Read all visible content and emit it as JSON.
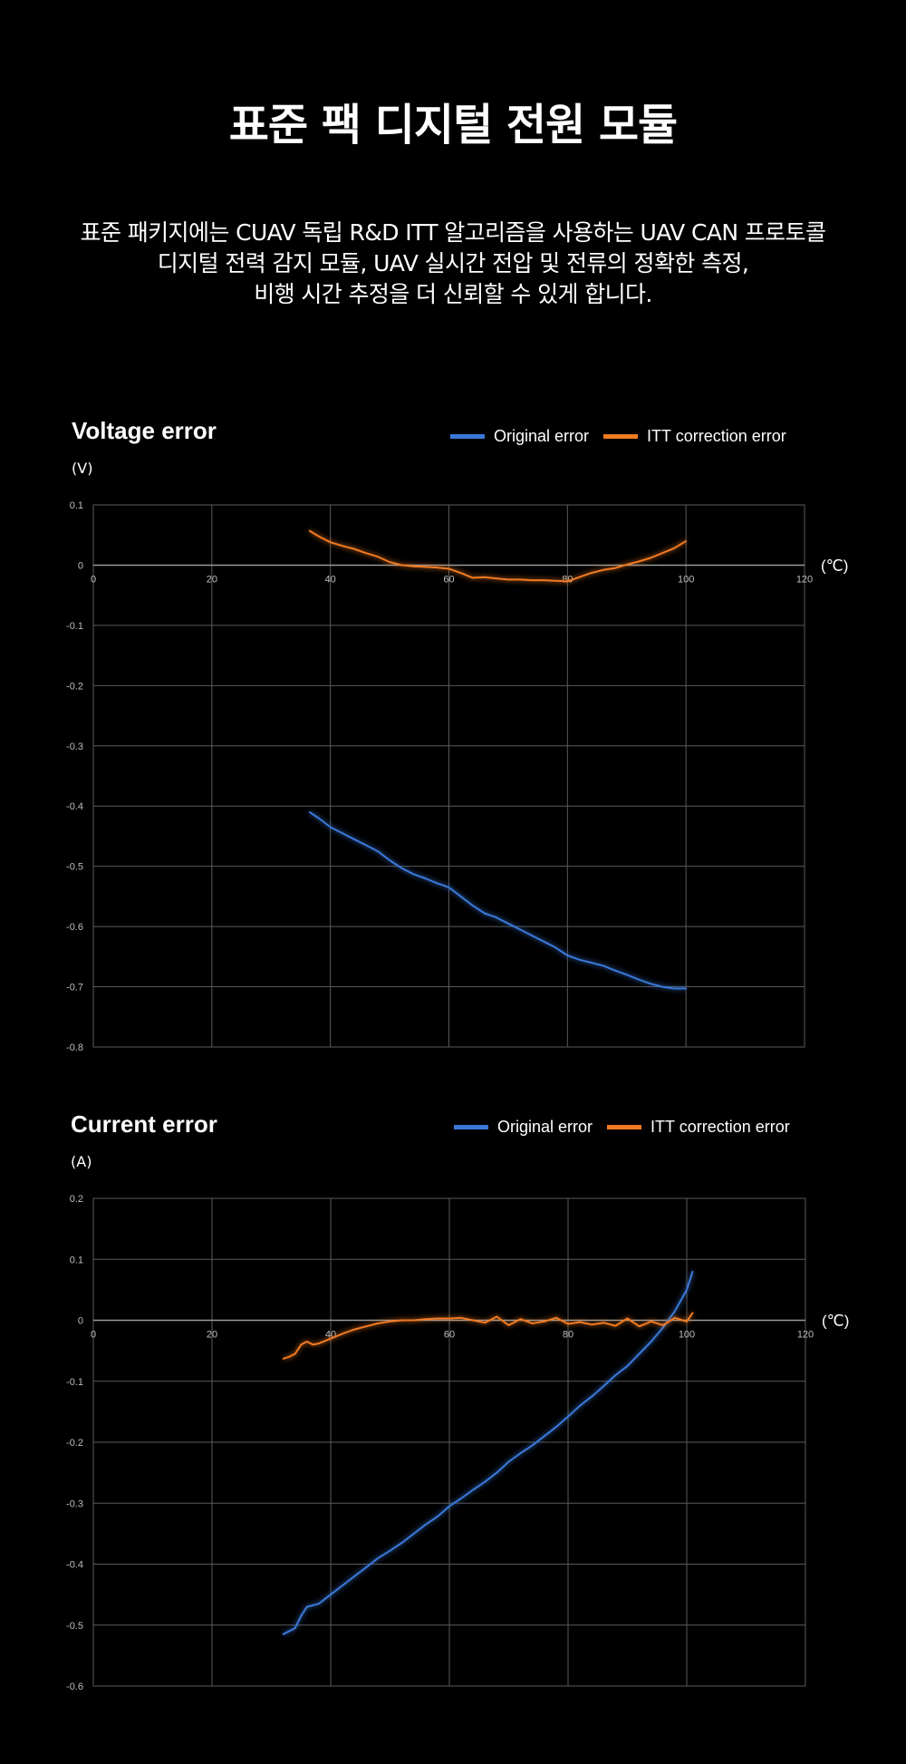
{
  "page": {
    "title": "표준 팩 디지털 전원 모듈",
    "intro_lines": [
      "표준 패키지에는 CUAV 독립 R&D ITT 알고리즘을 사용하는 UAV CAN 프로토콜",
      "디지털 전력 감지 모듈, UAV 실시간 전압 및 전류의 정확한 측정,",
      "비행 시간 추정을 더 신뢰할 수 있게 합니다."
    ]
  },
  "colors": {
    "original": "#3a78d8",
    "itt": "#f07a22",
    "grid": "#5a5a5a",
    "axis": "#9a9a9a",
    "tick": "#bdbdbd"
  },
  "chart_data": [
    {
      "type": "line",
      "title": "Voltage error",
      "ylabel": "(V)",
      "xlabel": "(℃)",
      "xlim": [
        0,
        120
      ],
      "ylim": [
        -0.8,
        0.1
      ],
      "x_ticks": [
        0,
        20,
        40,
        60,
        80,
        100,
        120
      ],
      "x_tick_labels": [
        "0",
        "20",
        "40",
        "60",
        "80",
        "100",
        "120"
      ],
      "y_ticks": [
        0.1,
        0,
        -0.1,
        -0.2,
        -0.3,
        -0.4,
        -0.5,
        -0.6,
        -0.7,
        -0.8
      ],
      "y_tick_labels": [
        "0.1",
        "0",
        "-0.1",
        "-0.2",
        "-0.3",
        "-0.4",
        "-0.5",
        "-0.6",
        "-0.7",
        "-0.8"
      ],
      "grid": true,
      "legend_position": "top-right",
      "series": [
        {
          "name": "Original error",
          "color_key": "original",
          "x": [
            36.5,
            38,
            40,
            42,
            44,
            46,
            48,
            50,
            52,
            54,
            56,
            58,
            60,
            62,
            64,
            66,
            68,
            70,
            72,
            74,
            76,
            78,
            80,
            82,
            84,
            86,
            88,
            90,
            92,
            94,
            96,
            98,
            100
          ],
          "y": [
            -0.41,
            -0.42,
            -0.435,
            -0.445,
            -0.455,
            -0.465,
            -0.475,
            -0.49,
            -0.503,
            -0.513,
            -0.52,
            -0.528,
            -0.535,
            -0.55,
            -0.565,
            -0.578,
            -0.585,
            -0.595,
            -0.605,
            -0.615,
            -0.625,
            -0.635,
            -0.648,
            -0.655,
            -0.66,
            -0.665,
            -0.673,
            -0.68,
            -0.688,
            -0.695,
            -0.7,
            -0.703,
            -0.703
          ]
        },
        {
          "name": "ITT correction error",
          "color_key": "itt",
          "x": [
            36.5,
            38,
            40,
            42,
            44,
            46,
            48,
            50,
            52,
            54,
            56,
            58,
            60,
            62,
            64,
            66,
            68,
            70,
            72,
            74,
            76,
            78,
            80,
            82,
            84,
            86,
            88,
            90,
            92,
            94,
            96,
            98,
            100
          ],
          "y": [
            0.057,
            0.048,
            0.038,
            0.032,
            0.027,
            0.02,
            0.014,
            0.005,
            0.0,
            -0.002,
            -0.003,
            -0.004,
            -0.006,
            -0.013,
            -0.021,
            -0.02,
            -0.022,
            -0.024,
            -0.024,
            -0.025,
            -0.025,
            -0.026,
            -0.027,
            -0.02,
            -0.013,
            -0.008,
            -0.005,
            0.001,
            0.006,
            0.012,
            0.02,
            0.028,
            0.04
          ]
        }
      ]
    },
    {
      "type": "line",
      "title": "Current error",
      "ylabel": "(A)",
      "xlabel": "(℃)",
      "xlim": [
        0,
        120
      ],
      "ylim": [
        -0.6,
        0.2
      ],
      "x_ticks": [
        0,
        20,
        40,
        60,
        80,
        100,
        120
      ],
      "x_tick_labels": [
        "0",
        "20",
        "40",
        "60",
        "80",
        "100",
        "120"
      ],
      "y_ticks": [
        0.2,
        0.1,
        0,
        -0.1,
        -0.2,
        -0.3,
        -0.4,
        -0.5,
        -0.6
      ],
      "y_tick_labels": [
        "0.2",
        "0.1",
        "0",
        "-0.1",
        "-0.2",
        "-0.3",
        "-0.4",
        "-0.5",
        "-0.6"
      ],
      "grid": true,
      "legend_position": "top-right",
      "series": [
        {
          "name": "Original error",
          "color_key": "original",
          "x": [
            32,
            34,
            35,
            36,
            38,
            40,
            42,
            44,
            46,
            48,
            50,
            52,
            54,
            56,
            58,
            60,
            62,
            64,
            66,
            68,
            70,
            72,
            74,
            76,
            78,
            80,
            82,
            84,
            86,
            88,
            90,
            92,
            94,
            96,
            98,
            100,
            101
          ],
          "y": [
            -0.515,
            -0.505,
            -0.485,
            -0.47,
            -0.465,
            -0.45,
            -0.435,
            -0.42,
            -0.405,
            -0.39,
            -0.378,
            -0.365,
            -0.35,
            -0.335,
            -0.322,
            -0.305,
            -0.292,
            -0.278,
            -0.265,
            -0.25,
            -0.232,
            -0.218,
            -0.205,
            -0.19,
            -0.175,
            -0.158,
            -0.14,
            -0.125,
            -0.108,
            -0.09,
            -0.075,
            -0.055,
            -0.035,
            -0.012,
            0.015,
            0.05,
            0.08
          ]
        },
        {
          "name": "ITT correction error",
          "color_key": "itt",
          "x": [
            32,
            33,
            34,
            35,
            36,
            37,
            38,
            40,
            42,
            44,
            46,
            48,
            50,
            52,
            54,
            56,
            58,
            60,
            62,
            64,
            66,
            68,
            70,
            72,
            74,
            76,
            78,
            80,
            82,
            84,
            86,
            88,
            90,
            92,
            94,
            96,
            98,
            100,
            101
          ],
          "y": [
            -0.063,
            -0.06,
            -0.055,
            -0.04,
            -0.035,
            -0.04,
            -0.038,
            -0.03,
            -0.022,
            -0.015,
            -0.01,
            -0.005,
            -0.002,
            0.0,
            0.0,
            0.002,
            0.003,
            0.003,
            0.004,
            0.0,
            -0.004,
            0.006,
            -0.008,
            0.002,
            -0.005,
            -0.002,
            0.004,
            -0.006,
            -0.003,
            -0.007,
            -0.004,
            -0.009,
            0.003,
            -0.01,
            -0.002,
            -0.008,
            0.004,
            -0.002,
            0.012
          ]
        }
      ]
    }
  ]
}
